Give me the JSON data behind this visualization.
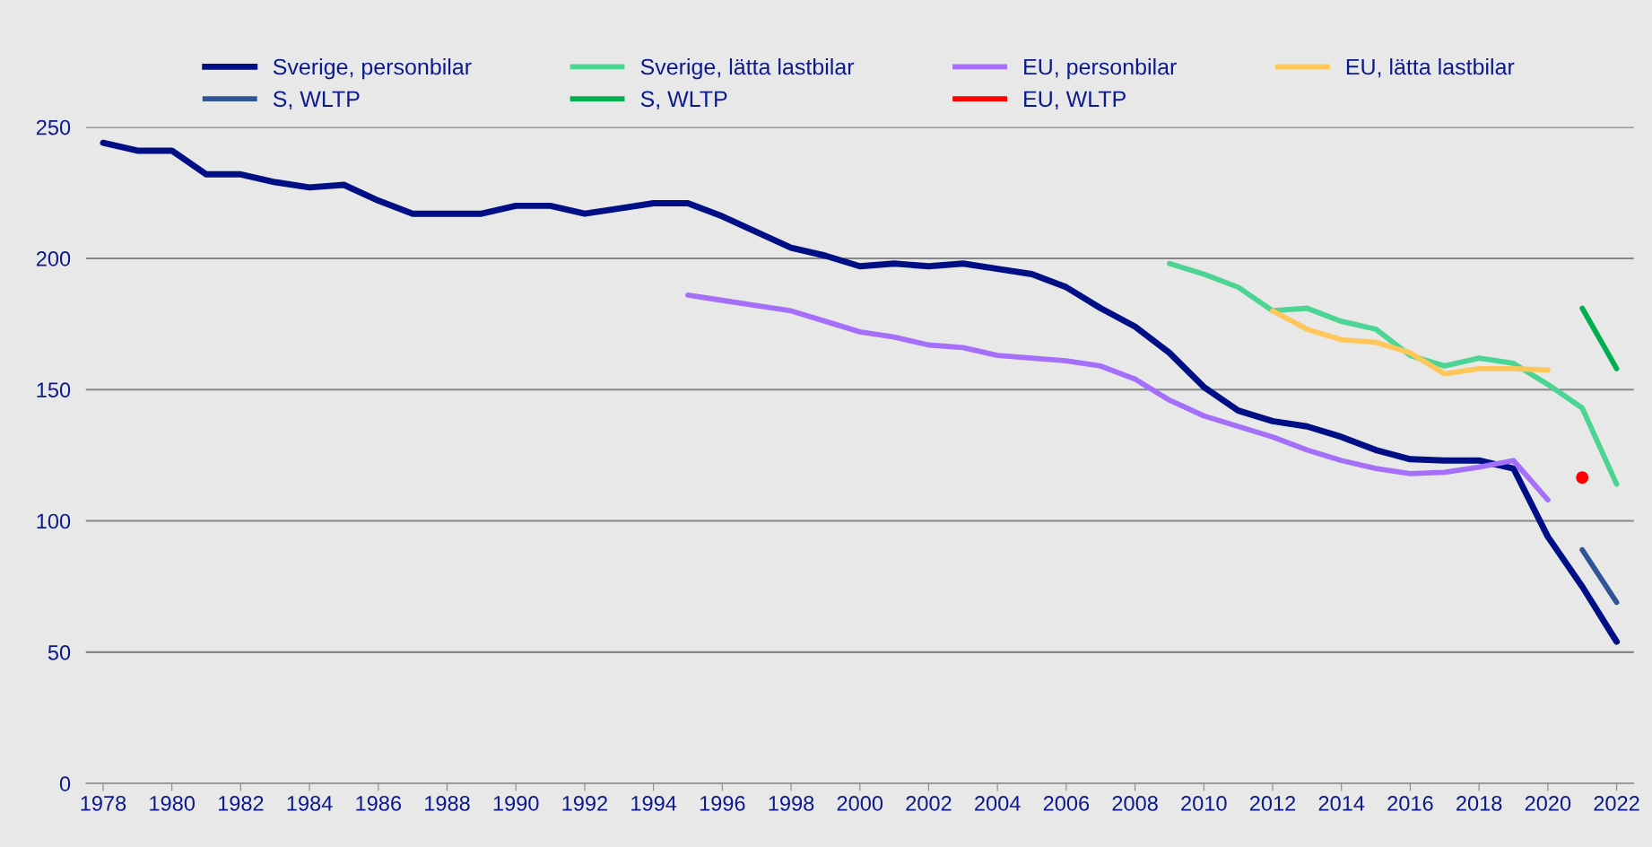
{
  "chart_data": {
    "type": "line",
    "series": [
      {
        "name": "Sverige, personbilar",
        "color": "#000f85",
        "x": [
          1978,
          1979,
          1980,
          1981,
          1982,
          1983,
          1984,
          1985,
          1986,
          1987,
          1988,
          1989,
          1990,
          1991,
          1992,
          1993,
          1994,
          1995,
          1996,
          1997,
          1998,
          1999,
          2000,
          2001,
          2002,
          2003,
          2004,
          2005,
          2006,
          2007,
          2008,
          2009,
          2010,
          2011,
          2012,
          2013,
          2014,
          2015,
          2016,
          2017,
          2018,
          2019,
          2020,
          2021,
          2022
        ],
        "values": [
          244,
          241,
          241,
          232,
          232,
          229,
          227,
          228,
          222,
          217,
          217,
          217,
          220,
          220,
          217,
          219,
          221,
          221,
          216,
          210,
          204,
          201,
          197,
          198,
          197,
          198,
          196,
          194,
          189,
          181,
          174,
          164,
          151,
          142,
          138,
          136,
          132,
          127,
          123.5,
          123,
          123,
          120,
          94,
          75,
          54
        ]
      },
      {
        "name": "Sverige, lätta lastbilar",
        "color": "#4cd493",
        "x": [
          2009,
          2010,
          2011,
          2012,
          2013,
          2014,
          2015,
          2016,
          2017,
          2018,
          2019,
          2020,
          2021,
          2022
        ],
        "values": [
          198,
          194,
          189,
          180,
          181,
          176,
          173,
          163,
          159,
          162,
          160,
          152,
          143,
          114
        ]
      },
      {
        "name": "EU, personbilar",
        "color": "#a56ffa",
        "x": [
          1995,
          1996,
          1997,
          1998,
          1999,
          2000,
          2001,
          2002,
          2003,
          2004,
          2005,
          2006,
          2007,
          2008,
          2009,
          2010,
          2011,
          2012,
          2013,
          2014,
          2015,
          2016,
          2017,
          2018,
          2019,
          2020
        ],
        "values": [
          186,
          184,
          182,
          180,
          176,
          172,
          170,
          167,
          166,
          163,
          162,
          161,
          159,
          154,
          146,
          140,
          136,
          132,
          127,
          123,
          120,
          118,
          118.5,
          120.5,
          123,
          108
        ]
      },
      {
        "name": "EU, lätta lastbilar",
        "color": "#ffc65a",
        "x": [
          2012,
          2013,
          2014,
          2015,
          2016,
          2017,
          2018,
          2019,
          2020
        ],
        "values": [
          180,
          173,
          169,
          168,
          164,
          156,
          158,
          158,
          157.5
        ]
      },
      {
        "name": "S, WLTP",
        "color": "#2f5597",
        "x": [
          2021,
          2022
        ],
        "values": [
          89,
          69
        ]
      },
      {
        "name": "S, WLTP",
        "color": "#00b050",
        "x": [
          2021,
          2022
        ],
        "values": [
          181,
          158
        ]
      },
      {
        "name": "EU, WLTP",
        "color": "#ff0000",
        "x": [
          2021
        ],
        "values": [
          116.5
        ],
        "marker": "circle"
      }
    ],
    "xlim": [
      1977.5,
      2022.5
    ],
    "xticks": [
      1978,
      1980,
      1982,
      1984,
      1986,
      1988,
      1990,
      1992,
      1994,
      1996,
      1998,
      2000,
      2002,
      2004,
      2006,
      2008,
      2010,
      2012,
      2014,
      2016,
      2018,
      2020,
      2022
    ],
    "ylim": [
      0,
      250
    ],
    "yticks": [
      0,
      50,
      100,
      150,
      200,
      250
    ],
    "grid": "y",
    "legend": "top"
  }
}
